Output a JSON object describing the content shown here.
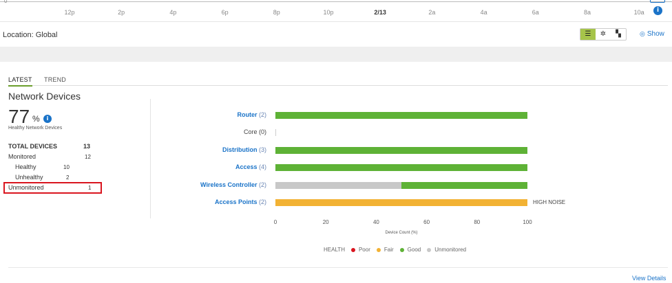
{
  "timeline": {
    "left_label": "0",
    "ticks": [
      "12p",
      "2p",
      "4p",
      "6p",
      "8p",
      "10p",
      "2/13",
      "2a",
      "4a",
      "6a",
      "8a",
      "10a"
    ],
    "current_tick": "2/13"
  },
  "location": {
    "label": "Location: Global"
  },
  "view_toggle": {
    "list_icon": "list-icon",
    "topology_icon": "topology-icon",
    "map_icon": "map-icon",
    "active": "list"
  },
  "show_link": {
    "label": "Show"
  },
  "tabs": [
    {
      "label": "LATEST",
      "active": true
    },
    {
      "label": "TREND",
      "active": false
    }
  ],
  "summary": {
    "title": "Network Devices",
    "health_percent": "77",
    "percent_unit": "%",
    "health_caption": "Healthy Network Devices",
    "total_label": "TOTAL DEVICES",
    "total_value": "13",
    "monitored_label": "Monitored",
    "monitored_value": "12",
    "healthy_label": "Healthy",
    "healthy_value": "10",
    "unhealthy_label": "Unhealthy",
    "unhealthy_value": "2",
    "unmonitored_label": "Unmonitored",
    "unmonitored_value": "1"
  },
  "chart_data": {
    "type": "bar",
    "orientation": "horizontal",
    "stacked": true,
    "categories": [
      {
        "name": "Router",
        "count": "(2)",
        "link": true,
        "good": 100,
        "unmonitored": 0,
        "fair": 0,
        "annotation": ""
      },
      {
        "name": "Core",
        "count": "(0)",
        "link": false,
        "good": 0,
        "unmonitored": 0,
        "fair": 0,
        "annotation": ""
      },
      {
        "name": "Distribution",
        "count": "(3)",
        "link": true,
        "good": 100,
        "unmonitored": 0,
        "fair": 0,
        "annotation": ""
      },
      {
        "name": "Access",
        "count": "(4)",
        "link": true,
        "good": 100,
        "unmonitored": 0,
        "fair": 0,
        "annotation": ""
      },
      {
        "name": "Wireless Controller",
        "count": "(2)",
        "link": true,
        "good": 50,
        "unmonitored": 50,
        "fair": 0,
        "annotation": ""
      },
      {
        "name": "Access Points",
        "count": "(2)",
        "link": true,
        "good": 0,
        "unmonitored": 0,
        "fair": 100,
        "annotation": "HIGH NOISE"
      }
    ],
    "xlim": [
      0,
      100
    ],
    "x_ticks": [
      "0",
      "20",
      "40",
      "60",
      "80",
      "100"
    ],
    "xlabel": "Device Count (%)",
    "legend": {
      "title": "HEALTH",
      "placement": "bottom",
      "items": [
        {
          "label": "Poor",
          "color": "#d9141e"
        },
        {
          "label": "Fair",
          "color": "#f2b234"
        },
        {
          "label": "Good",
          "color": "#5eb236"
        },
        {
          "label": "Unmonitored",
          "color": "#c8c8c8"
        }
      ]
    },
    "colors": {
      "good": "#5eb236",
      "fair": "#f2b234",
      "unmonitored": "#c8c8c8"
    }
  },
  "footer": {
    "view_details": "View Details"
  }
}
